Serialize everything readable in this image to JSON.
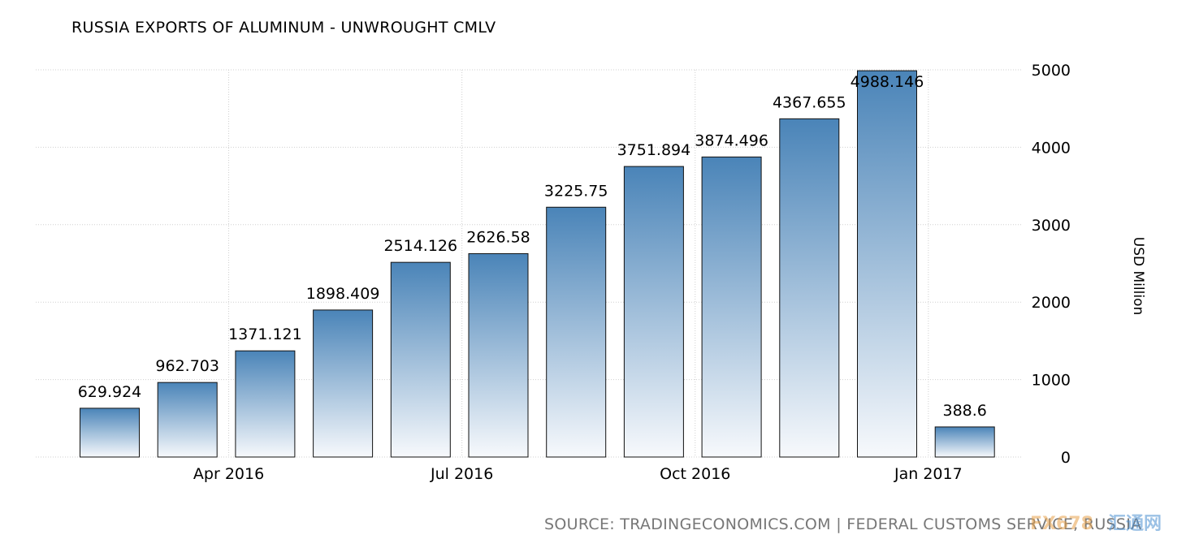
{
  "title": "RUSSIA EXPORTS OF ALUMINUM - UNWROUGHT CMLV",
  "source": "SOURCE: TRADINGECONOMICS.COM | FEDERAL CUSTOMS SERVICE, RUSSIA",
  "watermark": {
    "part1": "FX678",
    "part2": "汇通网"
  },
  "colors": {
    "bar_top": "#4a84b8",
    "bar_bottom": "#f7f9fc",
    "grid": "#cfcfcf",
    "source": "#777777"
  },
  "chart_data": {
    "type": "bar",
    "title": "RUSSIA EXPORTS OF ALUMINUM - UNWROUGHT CMLV",
    "ylabel": "USD Million",
    "xlabel": "",
    "ylim": [
      0,
      5000
    ],
    "yticks": [
      0,
      1000,
      2000,
      3000,
      4000,
      5000
    ],
    "grid": true,
    "y_axis_side": "right",
    "categories": [
      "2016-02",
      "2016-03",
      "2016-04",
      "2016-05",
      "2016-06",
      "2016-07",
      "2016-08",
      "2016-09",
      "2016-10",
      "2016-11",
      "2016-12",
      "2017-01"
    ],
    "values": [
      629.924,
      962.703,
      1371.121,
      1898.409,
      2514.126,
      2626.58,
      3225.75,
      3751.894,
      3874.496,
      4367.655,
      4988.146,
      388.6
    ],
    "data_labels": [
      "629.924",
      "962.703",
      "1371.121",
      "1898.409",
      "2514.126",
      "2626.58",
      "3225.75",
      "3751.894",
      "3874.496",
      "4367.655",
      "4988.146",
      "388.6"
    ],
    "xtick_labels": [
      {
        "label": "Apr 2016",
        "date": "2016-04"
      },
      {
        "label": "Jul 2016",
        "date": "2016-07"
      },
      {
        "label": "Oct 2016",
        "date": "2016-10"
      },
      {
        "label": "Jan 2017",
        "date": "2017-01"
      }
    ]
  }
}
